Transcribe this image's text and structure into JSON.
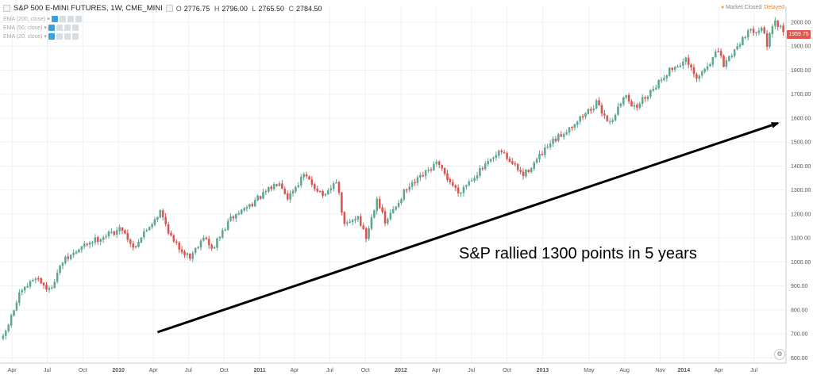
{
  "header": {
    "symbol": "S&P 500 E-MINI FUTURES, 1W, CME_MINI",
    "open_label": "O",
    "open": "2776.75",
    "high_label": "H",
    "high": "2796.00",
    "low_label": "L",
    "low": "2765.50",
    "close_label": "C",
    "close": "2784.50"
  },
  "indicators": [
    {
      "label": "EMA (200, close)"
    },
    {
      "label": "EMA (50, close)"
    },
    {
      "label": "EMA (20, close)"
    }
  ],
  "status": {
    "market": "Market Closed",
    "delayed": "Delayed"
  },
  "last_price": "1959.75",
  "annotation": "S&P rallied 1300 points in 5 years",
  "colors": {
    "up": "#5fa592",
    "down": "#d9534f",
    "grid": "#eef1f4",
    "axis_text": "#555555",
    "tag": "#e0564a"
  },
  "icons": {
    "settings": "gear-icon"
  },
  "chart_data": {
    "type": "candlestick",
    "title": "S&P 500 E-MINI FUTURES, 1W, CME_MINI",
    "y_axis": {
      "ticks": [
        "600.00",
        "700.00",
        "800.00",
        "900.00",
        "1000.00",
        "1100.00",
        "1200.00",
        "1300.00",
        "1400.00",
        "1500.00",
        "1600.00",
        "1700.00",
        "1800.00",
        "1900.00",
        "2000.00"
      ],
      "range": [
        578,
        2033
      ]
    },
    "x_axis": {
      "ticks": [
        "Apr",
        "Jul",
        "Oct",
        "2010",
        "Apr",
        "Jul",
        "Oct",
        "2011",
        "Apr",
        "Jul",
        "Oct",
        "2012",
        "Apr",
        "Jul",
        "Oct",
        "2013",
        "May",
        "Aug",
        "Nov",
        "2014",
        "Apr",
        "Jul"
      ],
      "range": [
        "2009-03",
        "2014-09"
      ]
    },
    "anchors": [
      {
        "date": "2009-03-09",
        "value": 680
      },
      {
        "date": "2009-04-20",
        "value": 860
      },
      {
        "date": "2009-06-01",
        "value": 940
      },
      {
        "date": "2009-07-06",
        "value": 880
      },
      {
        "date": "2009-08-10",
        "value": 1000
      },
      {
        "date": "2009-10-15",
        "value": 1080
      },
      {
        "date": "2010-01-11",
        "value": 1140
      },
      {
        "date": "2010-02-08",
        "value": 1060
      },
      {
        "date": "2010-04-19",
        "value": 1210
      },
      {
        "date": "2010-05-24",
        "value": 1080
      },
      {
        "date": "2010-07-05",
        "value": 1020
      },
      {
        "date": "2010-08-09",
        "value": 1110
      },
      {
        "date": "2010-08-30",
        "value": 1050
      },
      {
        "date": "2010-10-18",
        "value": 1180
      },
      {
        "date": "2011-01-10",
        "value": 1280
      },
      {
        "date": "2011-02-21",
        "value": 1340
      },
      {
        "date": "2011-03-14",
        "value": 1270
      },
      {
        "date": "2011-04-25",
        "value": 1360
      },
      {
        "date": "2011-06-20",
        "value": 1270
      },
      {
        "date": "2011-07-18",
        "value": 1340
      },
      {
        "date": "2011-08-08",
        "value": 1150
      },
      {
        "date": "2011-09-12",
        "value": 1190
      },
      {
        "date": "2011-10-03",
        "value": 1100
      },
      {
        "date": "2011-10-31",
        "value": 1270
      },
      {
        "date": "2011-11-21",
        "value": 1160
      },
      {
        "date": "2012-01-09",
        "value": 1290
      },
      {
        "date": "2012-04-02",
        "value": 1410
      },
      {
        "date": "2012-05-28",
        "value": 1290
      },
      {
        "date": "2012-07-09",
        "value": 1360
      },
      {
        "date": "2012-09-17",
        "value": 1460
      },
      {
        "date": "2012-11-12",
        "value": 1360
      },
      {
        "date": "2013-01-21",
        "value": 1490
      },
      {
        "date": "2013-05-20",
        "value": 1660
      },
      {
        "date": "2013-06-24",
        "value": 1580
      },
      {
        "date": "2013-08-05",
        "value": 1700
      },
      {
        "date": "2013-08-26",
        "value": 1640
      },
      {
        "date": "2013-11-25",
        "value": 1800
      },
      {
        "date": "2014-01-06",
        "value": 1840
      },
      {
        "date": "2014-02-03",
        "value": 1760
      },
      {
        "date": "2014-03-31",
        "value": 1880
      },
      {
        "date": "2014-04-14",
        "value": 1820
      },
      {
        "date": "2014-06-09",
        "value": 1950
      },
      {
        "date": "2014-07-21",
        "value": 1980
      },
      {
        "date": "2014-08-04",
        "value": 1910
      },
      {
        "date": "2014-08-25",
        "value": 2000
      },
      {
        "date": "2014-09-15",
        "value": 1960
      }
    ],
    "arrow": {
      "from": {
        "date": "2010-04-12",
        "value": 707
      },
      "to": {
        "date": "2014-09-01",
        "value": 1579
      }
    },
    "last": 1959.75
  }
}
